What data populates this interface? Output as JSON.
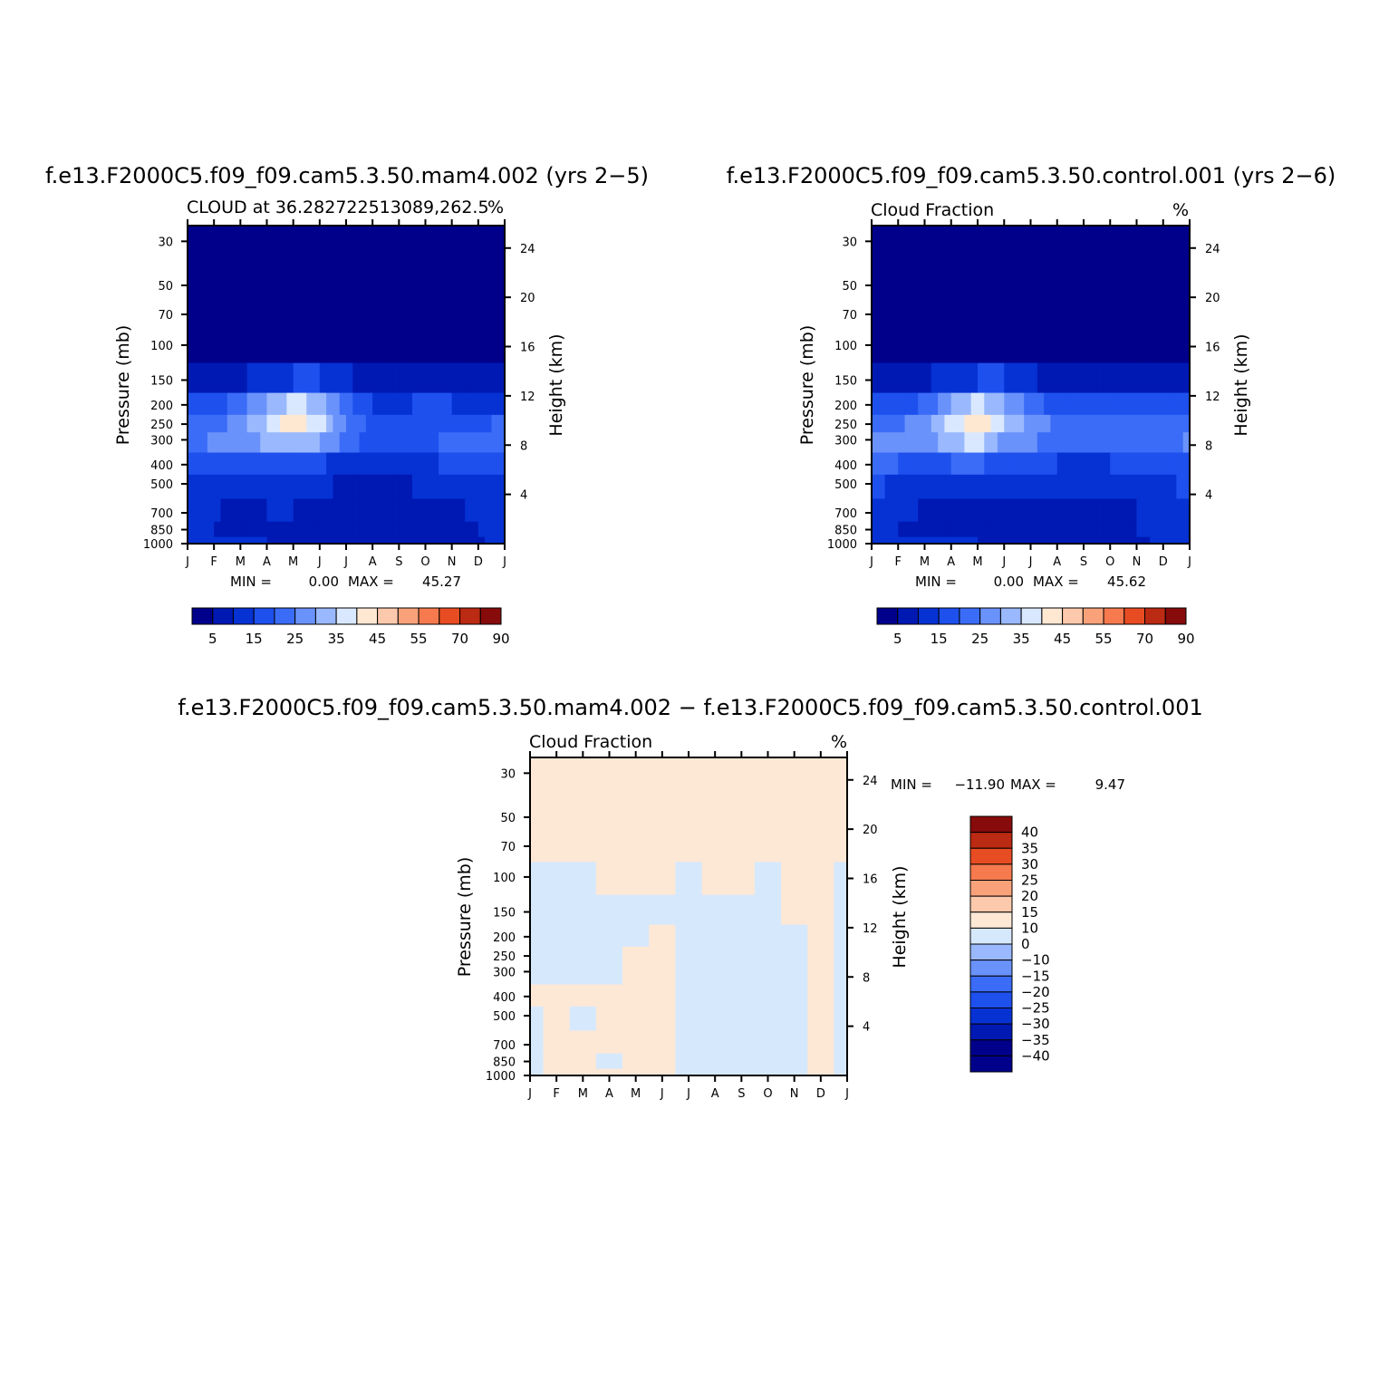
{
  "chart_data": [
    {
      "type": "heatmap",
      "title": "f.e13.F2000C5.f09_f09.cam5.3.50.mam4.002 (yrs 2−5)",
      "subtitle_left": "CLOUD at 36.28272251308 9,262.5",
      "subtitle_left_raw": "CLOUD at 36.282722513089,262.5",
      "units": "%",
      "xlabel": "",
      "ylabel": "Pressure (mb)",
      "ylabel_right": "Height (km)",
      "x_ticks": [
        "J",
        "F",
        "M",
        "A",
        "M",
        "J",
        "J",
        "A",
        "S",
        "O",
        "N",
        "D",
        "J"
      ],
      "y_ticks": [
        30,
        50,
        70,
        100,
        150,
        200,
        250,
        300,
        400,
        500,
        700,
        850,
        1000
      ],
      "y_ticks_right": [
        24,
        20,
        16,
        12,
        8,
        4
      ],
      "y_scale": "log",
      "ylim": [
        1000,
        25
      ],
      "stats": {
        "min_label": "MIN =",
        "min": "0.00",
        "max_label": "MAX =",
        "max": "45.27"
      },
      "levels": [
        5,
        10,
        15,
        20,
        25,
        30,
        35,
        40,
        45,
        50,
        55,
        60,
        70,
        80,
        90
      ],
      "colorbar_labels": [
        "5",
        "15",
        "25",
        "35",
        "45",
        "55",
        "70",
        "90"
      ],
      "field": {
        "x": [
          0,
          1,
          2,
          3,
          4,
          5,
          6,
          7,
          8,
          9,
          10,
          11,
          12
        ],
        "pressure": [
          1000,
          850,
          700,
          500,
          400,
          300,
          250,
          200,
          150,
          100,
          70,
          50,
          30
        ],
        "values": [
          [
            12,
            10,
            10,
            10,
            9,
            7,
            6,
            5,
            5,
            6,
            7,
            9,
            12
          ],
          [
            11,
            10,
            8,
            9,
            8,
            8,
            6,
            5,
            6,
            8,
            9,
            10,
            11
          ],
          [
            13,
            11,
            8,
            10,
            10,
            9,
            7,
            7,
            7,
            8,
            9,
            11,
            13
          ],
          [
            15,
            14,
            13,
            13,
            13,
            11,
            9,
            9,
            9,
            11,
            12,
            13,
            15
          ],
          [
            19,
            19,
            19,
            19,
            19,
            16,
            13,
            12,
            12,
            14,
            16,
            17,
            19
          ],
          [
            22,
            26,
            27,
            31,
            34,
            30,
            22,
            18,
            17,
            19,
            21,
            20,
            22
          ],
          [
            21,
            23,
            28,
            35,
            43,
            38,
            25,
            18,
            17,
            19,
            20,
            19,
            21
          ],
          [
            15,
            17,
            22,
            30,
            37,
            33,
            22,
            15,
            14,
            16,
            15,
            14,
            15
          ],
          [
            6,
            8,
            9,
            12,
            15,
            15,
            11,
            8,
            6,
            7,
            7,
            6,
            6
          ],
          [
            1,
            1,
            1,
            1,
            1,
            1,
            1,
            1,
            1,
            1,
            1,
            1,
            1
          ],
          [
            0,
            0,
            0,
            0,
            0,
            0,
            0,
            0,
            0,
            0,
            0,
            0,
            0
          ],
          [
            0,
            0,
            0,
            0,
            0,
            0,
            0,
            0,
            0,
            0,
            0,
            0,
            0
          ],
          [
            0,
            0,
            0,
            0,
            0,
            0,
            0,
            0,
            0,
            0,
            0,
            0,
            0
          ]
        ]
      }
    },
    {
      "type": "heatmap",
      "title": "f.e13.F2000C5.f09_f09.cam5.3.50.control.001 (yrs 2−6)",
      "subtitle_left": "Cloud Fraction",
      "units": "%",
      "xlabel": "",
      "ylabel": "Pressure (mb)",
      "ylabel_right": "Height (km)",
      "x_ticks": [
        "J",
        "F",
        "M",
        "A",
        "M",
        "J",
        "J",
        "A",
        "S",
        "O",
        "N",
        "D",
        "J"
      ],
      "y_ticks": [
        30,
        50,
        70,
        100,
        150,
        200,
        250,
        300,
        400,
        500,
        700,
        850,
        1000
      ],
      "y_ticks_right": [
        24,
        20,
        16,
        12,
        8,
        4
      ],
      "y_scale": "log",
      "ylim": [
        1000,
        25
      ],
      "stats": {
        "min_label": "MIN =",
        "min": "0.00",
        "max_label": "MAX =",
        "max": "45.62"
      },
      "levels": [
        5,
        10,
        15,
        20,
        25,
        30,
        35,
        40,
        45,
        50,
        55,
        60,
        70,
        80,
        90
      ],
      "colorbar_labels": [
        "5",
        "15",
        "25",
        "35",
        "45",
        "55",
        "70",
        "90"
      ],
      "field": {
        "x": [
          0,
          1,
          2,
          3,
          4,
          5,
          6,
          7,
          8,
          9,
          10,
          11,
          12
        ],
        "pressure": [
          1000,
          850,
          700,
          500,
          400,
          300,
          250,
          200,
          150,
          100,
          70,
          50,
          30
        ],
        "values": [
          [
            13,
            11,
            11,
            11,
            10,
            8,
            6,
            6,
            7,
            8,
            9,
            11,
            13
          ],
          [
            12,
            10,
            9,
            9,
            9,
            9,
            6,
            6,
            7,
            9,
            10,
            11,
            12
          ],
          [
            14,
            12,
            9,
            9,
            10,
            9,
            7,
            8,
            8,
            9,
            10,
            12,
            14
          ],
          [
            16,
            14,
            13,
            13,
            13,
            11,
            10,
            10,
            10,
            11,
            12,
            14,
            16
          ],
          [
            20,
            20,
            19,
            20,
            21,
            17,
            15,
            15,
            14,
            15,
            16,
            18,
            20
          ],
          [
            26,
            27,
            28,
            33,
            37,
            28,
            26,
            23,
            21,
            24,
            21,
            21,
            26
          ],
          [
            25,
            24,
            28,
            36,
            44,
            35,
            29,
            24,
            22,
            25,
            21,
            20,
            25
          ],
          [
            17,
            18,
            21,
            29,
            37,
            30,
            22,
            18,
            16,
            18,
            16,
            16,
            17
          ],
          [
            6,
            8,
            9,
            12,
            15,
            15,
            11,
            8,
            7,
            8,
            7,
            7,
            6
          ],
          [
            1,
            1,
            1,
            1,
            1,
            1,
            1,
            1,
            1,
            1,
            1,
            1,
            1
          ],
          [
            0,
            0,
            0,
            0,
            0,
            0,
            0,
            0,
            0,
            0,
            0,
            0,
            0
          ],
          [
            0,
            0,
            0,
            0,
            0,
            0,
            0,
            0,
            0,
            0,
            0,
            0,
            0
          ],
          [
            0,
            0,
            0,
            0,
            0,
            0,
            0,
            0,
            0,
            0,
            0,
            0,
            0
          ]
        ]
      }
    },
    {
      "type": "heatmap",
      "title": "f.e13.F2000C5.f09_f09.cam5.3.50.mam4.002 − f.e13.F2000C5.f09_f09.cam5.3.50.control.001",
      "subtitle_left": "Cloud Fraction",
      "units": "%",
      "xlabel": "",
      "ylabel": "Pressure (mb)",
      "ylabel_right": "Height (km)",
      "x_ticks": [
        "J",
        "F",
        "M",
        "A",
        "M",
        "J",
        "J",
        "A",
        "S",
        "O",
        "N",
        "D",
        "J"
      ],
      "y_ticks": [
        30,
        50,
        70,
        100,
        150,
        200,
        250,
        300,
        400,
        500,
        700,
        850,
        1000
      ],
      "y_ticks_right": [
        24,
        20,
        16,
        12,
        8,
        4
      ],
      "y_scale": "log",
      "ylim": [
        1000,
        25
      ],
      "stats": {
        "min_label": "MIN =",
        "min": "−11.90",
        "max_label": "MAX =",
        "max": "9.47"
      },
      "levels": [
        -40,
        -35,
        -30,
        -25,
        -20,
        -15,
        -10,
        0,
        10,
        15,
        20,
        25,
        30,
        35,
        40
      ],
      "colorbar_labels": [
        "40",
        "35",
        "30",
        "25",
        "20",
        "15",
        "10",
        "0",
        "−10",
        "−15",
        "−20",
        "−25",
        "−30",
        "−35",
        "−40"
      ],
      "field": {
        "x": [
          0,
          1,
          2,
          3,
          4,
          5,
          6,
          7,
          8,
          9,
          10,
          11,
          12
        ],
        "pressure": [
          1000,
          850,
          700,
          500,
          400,
          300,
          250,
          200,
          150,
          100,
          70,
          50,
          30
        ],
        "values": [
          [
            -1,
            1,
            1,
            1,
            1,
            1,
            -1,
            -1,
            -1,
            -1,
            -1,
            1,
            -1
          ],
          [
            -1,
            1,
            1,
            -1,
            1,
            1,
            -1,
            -1,
            -1,
            -1,
            -1,
            1,
            -1
          ],
          [
            -1,
            1,
            1,
            1,
            1,
            1,
            -1,
            -1,
            -1,
            -1,
            -1,
            1,
            -1
          ],
          [
            -1,
            1,
            -1,
            1,
            1,
            1,
            -1,
            -1,
            -1,
            -1,
            -1,
            1,
            -1
          ],
          [
            1,
            1,
            1,
            1,
            1,
            1,
            -1,
            -1,
            -1,
            -1,
            -1,
            1,
            -1
          ],
          [
            -1,
            -1,
            -1,
            -1,
            1,
            1,
            -1,
            -1,
            -1,
            -1,
            -1,
            1,
            -1
          ],
          [
            -1,
            -1,
            -1,
            -1,
            1,
            1,
            -1,
            -1,
            -1,
            -1,
            -1,
            1,
            -1
          ],
          [
            -1,
            -1,
            -1,
            -1,
            -1,
            1,
            -1,
            -1,
            -1,
            -1,
            -1,
            1,
            -1
          ],
          [
            -1,
            -1,
            -1,
            -1,
            -1,
            -1,
            -1,
            -1,
            -1,
            -1,
            1,
            1,
            -1
          ],
          [
            -1,
            -1,
            -1,
            1,
            1,
            1,
            -1,
            1,
            1,
            -1,
            1,
            1,
            -1
          ],
          [
            1,
            1,
            1,
            1,
            1,
            1,
            1,
            1,
            1,
            1,
            1,
            1,
            1
          ],
          [
            1,
            1,
            1,
            1,
            1,
            1,
            1,
            1,
            1,
            1,
            1,
            1,
            1
          ],
          [
            1,
            1,
            1,
            1,
            1,
            1,
            1,
            1,
            1,
            1,
            1,
            1,
            1
          ]
        ]
      }
    }
  ],
  "colors": {
    "abs_palette": [
      "#00008b",
      "#0019b3",
      "#0632d4",
      "#1e50ee",
      "#3a6cf7",
      "#6a92fb",
      "#99b8fd",
      "#d9e8ff",
      "#ffe8d2",
      "#fdc9ac",
      "#f9a27a",
      "#f67a4e",
      "#e84c23",
      "#bb2a12",
      "#870b0b"
    ],
    "diff_palette": [
      "#00008b",
      "#0019b3",
      "#0632d4",
      "#1e50ee",
      "#3a6cf7",
      "#6a92fb",
      "#99b8fd",
      "#d6e8fc",
      "#fde8d6",
      "#fdc9ac",
      "#f9a27a",
      "#f67a4e",
      "#e84c23",
      "#bb2a12",
      "#870b0b"
    ]
  }
}
